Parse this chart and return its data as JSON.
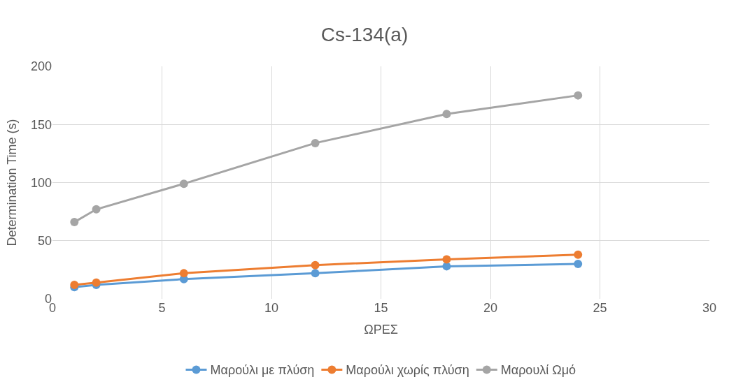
{
  "chart_data": {
    "type": "line",
    "title": "Cs-134(a)",
    "xlabel": "ΩΡΕΣ",
    "ylabel": "Determination Time (s)",
    "x": [
      1,
      2,
      6,
      12,
      18,
      24
    ],
    "series": [
      {
        "name": "Μαρούλι με πλύση",
        "color": "#5b9bd5",
        "values": [
          10,
          12,
          17,
          22,
          28,
          30
        ]
      },
      {
        "name": "Μαρούλι χωρίς πλύση",
        "color": "#ed7d31",
        "values": [
          12,
          14,
          22,
          29,
          34,
          38
        ]
      },
      {
        "name": "Μαρουλί Ωμό",
        "color": "#a5a5a5",
        "values": [
          66,
          77,
          99,
          134,
          159,
          175
        ]
      }
    ],
    "xlim": [
      0,
      30
    ],
    "xticks": [
      0,
      5,
      10,
      15,
      20,
      25,
      30
    ],
    "ylim": [
      0,
      200
    ],
    "yticks": [
      0,
      50,
      100,
      150,
      200
    ],
    "grid": true,
    "legend": "bottom",
    "marker": "circle",
    "line_style": "solid"
  }
}
